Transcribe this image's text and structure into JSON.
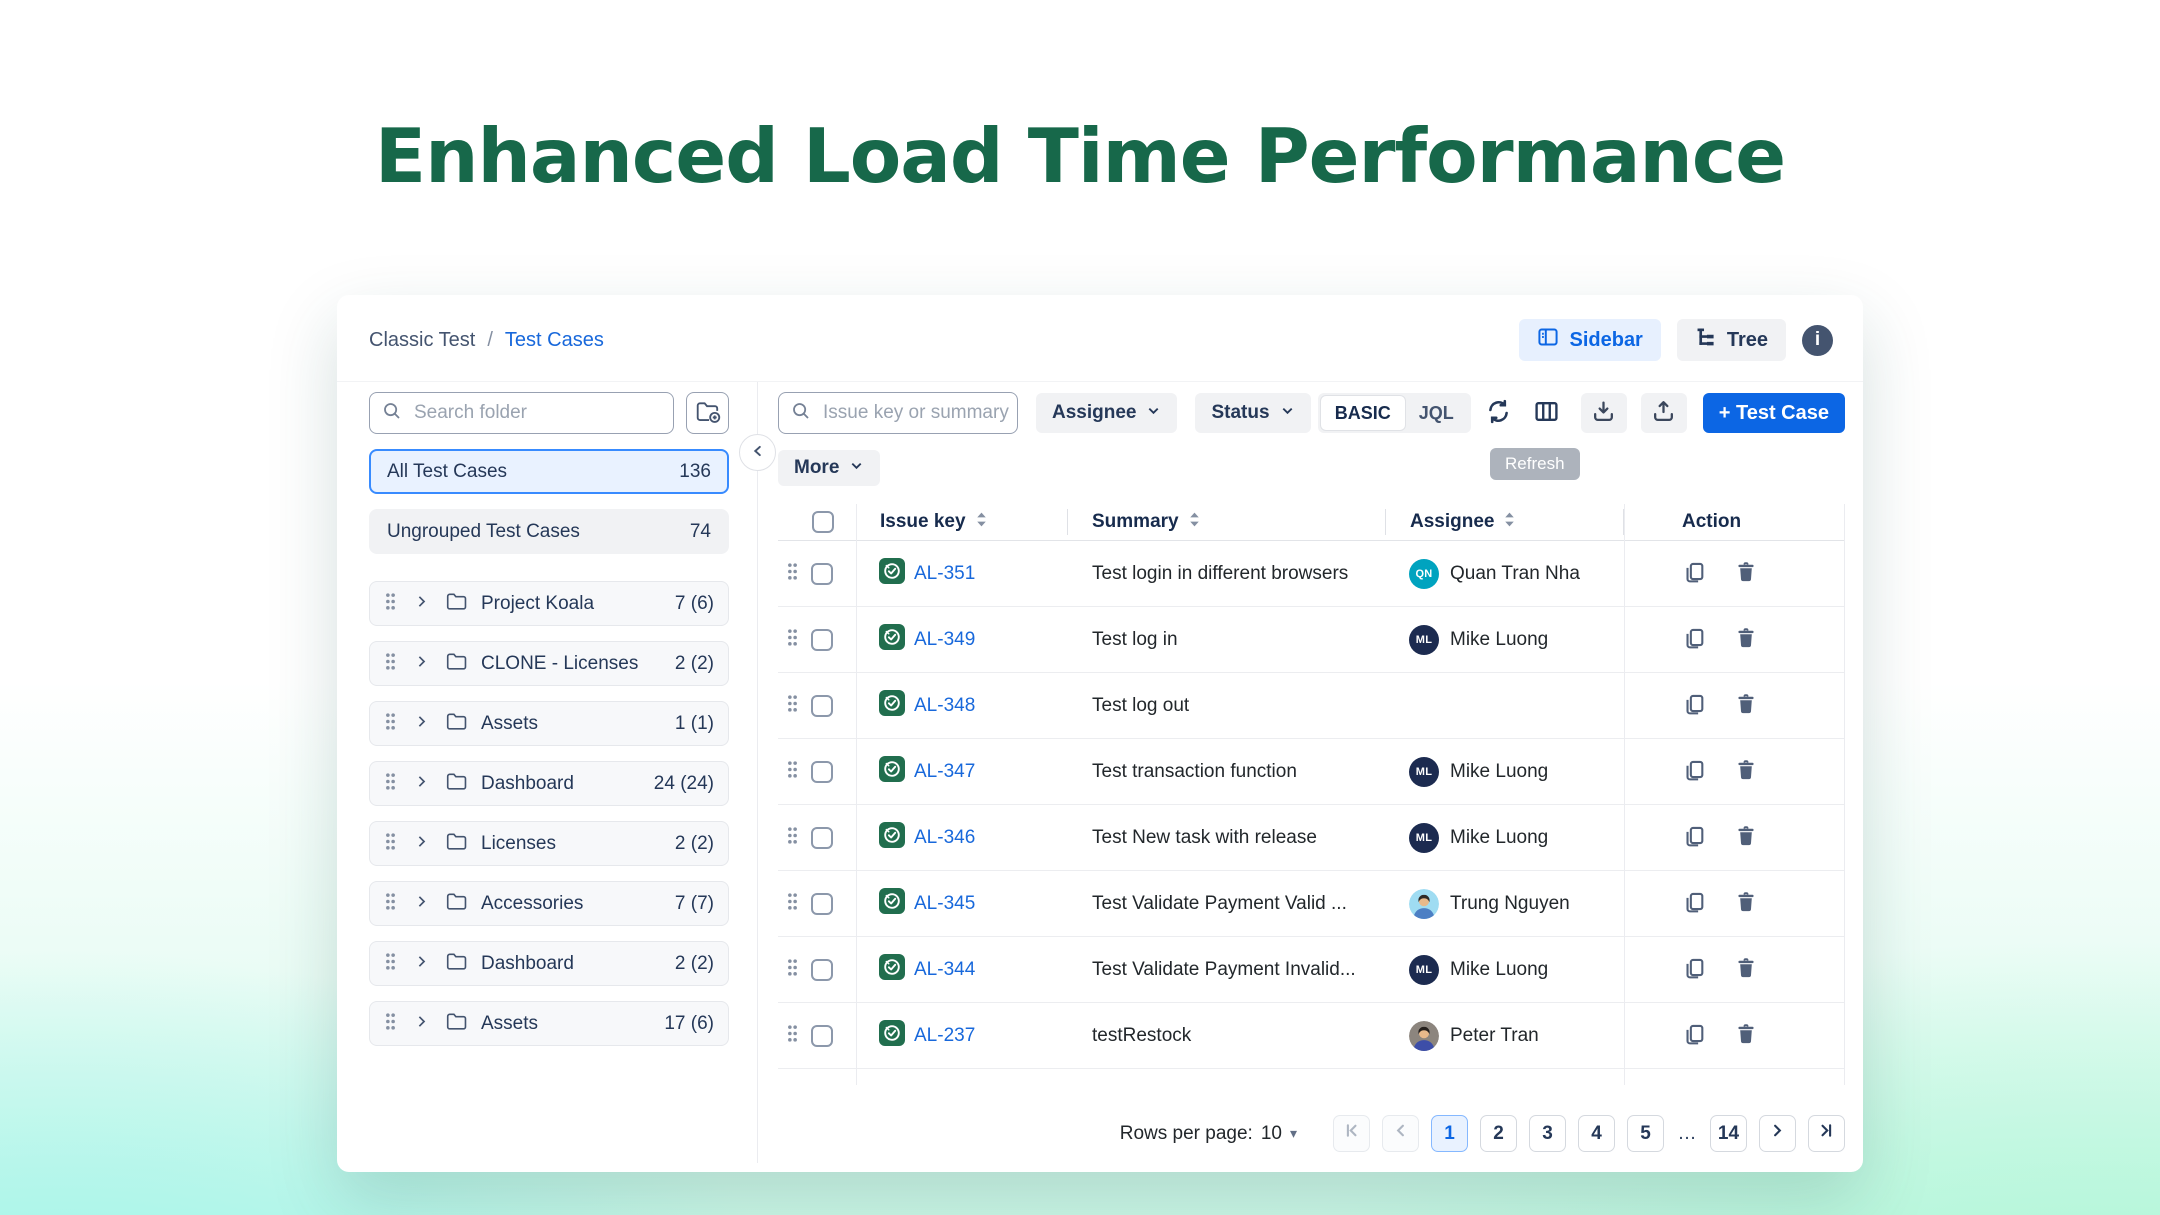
{
  "page": {
    "title": "Enhanced Load Time Performance"
  },
  "colors": {
    "title_green": "#17684A",
    "accent_blue": "#0C66E4",
    "link_blue": "#1868DB",
    "selected_bg": "#E9F2FF",
    "selected_border": "#388BFF",
    "test_case_green": "#216E4E",
    "text_primary": "#172B4D",
    "bg_corner_left": "#9EF4EC",
    "bg_corner_right": "#AEF6D6"
  },
  "icons": {
    "search": "magnifier",
    "add-folder": "folder-plus",
    "drag-handle": "six-dots",
    "chevron-right": "›",
    "folder": "folder-outline",
    "collapse": "‹",
    "sidebar": "split-panel",
    "tree": "hierarchy",
    "info": "i-circle",
    "refresh": "circular-arrows",
    "columns": "table-columns",
    "download": "arrow-down-tray",
    "upload": "arrow-up-tray",
    "test-case": "check-circle-tile",
    "copy": "duplicate",
    "trash": "trash-can",
    "sort": "up-down-triangles"
  },
  "window": {
    "breadcrumb": {
      "parent": "Classic Test",
      "separator": "/",
      "current": "Test Cases"
    },
    "view_buttons": {
      "sidebar": "Sidebar",
      "tree": "Tree"
    },
    "sidebar": {
      "search_placeholder": "Search folder",
      "summary_items": [
        {
          "label": "All Test Cases",
          "count": "136"
        },
        {
          "label": "Ungrouped Test Cases",
          "count": "74"
        }
      ],
      "folders": [
        {
          "name": "Project Koala",
          "count": "7 (6)"
        },
        {
          "name": "CLONE - Licenses",
          "count": "2 (2)"
        },
        {
          "name": "Assets",
          "count": "1 (1)"
        },
        {
          "name": "Dashboard",
          "count": "24 (24)"
        },
        {
          "name": "Licenses",
          "count": "2 (2)"
        },
        {
          "name": "Accessories",
          "count": "7 (7)"
        },
        {
          "name": "Dashboard",
          "count": "2 (2)"
        },
        {
          "name": "Assets",
          "count": "17 (6)"
        }
      ]
    },
    "toolbar": {
      "search_placeholder": "Issue key or summary",
      "assignee_filter": "Assignee",
      "status_filter": "Status",
      "mode_basic": "BASIC",
      "mode_jql": "JQL",
      "refresh_tooltip": "Refresh",
      "add_test_case": "+ Test Case",
      "more": "More"
    },
    "table": {
      "columns": {
        "issue_key": "Issue key",
        "summary": "Summary",
        "assignee": "Assignee",
        "action": "Action"
      },
      "rows": [
        {
          "key": "AL-351",
          "summary": "Test login in different browsers",
          "assignee": "Quan Tran Nha",
          "avatar": {
            "type": "initials",
            "initials": "QN",
            "color": "#00A3BF"
          }
        },
        {
          "key": "AL-349",
          "summary": "Test log in",
          "assignee": "Mike Luong",
          "avatar": {
            "type": "initials",
            "initials": "ML",
            "color": "#1C2B50"
          }
        },
        {
          "key": "AL-348",
          "summary": "Test log out",
          "assignee": "",
          "avatar": {
            "type": "none"
          }
        },
        {
          "key": "AL-347",
          "summary": "Test transaction function",
          "assignee": "Mike Luong",
          "avatar": {
            "type": "initials",
            "initials": "ML",
            "color": "#1C2B50"
          }
        },
        {
          "key": "AL-346",
          "summary": "Test New task with release",
          "assignee": "Mike Luong",
          "avatar": {
            "type": "initials",
            "initials": "ML",
            "color": "#1C2B50"
          }
        },
        {
          "key": "AL-345",
          "summary": "Test Validate Payment Valid ...",
          "assignee": "Trung Nguyen",
          "avatar": {
            "type": "photo",
            "bg": "#9FDCF2",
            "shirt": "#4C7FC4",
            "hair": "#2E2A26"
          }
        },
        {
          "key": "AL-344",
          "summary": "Test Validate Payment Invalid...",
          "assignee": "Mike Luong",
          "avatar": {
            "type": "initials",
            "initials": "ML",
            "color": "#1C2B50"
          }
        },
        {
          "key": "AL-237",
          "summary": "testRestock",
          "assignee": "Peter Tran",
          "avatar": {
            "type": "photo",
            "bg": "#8C857E",
            "shirt": "#3D4EA8",
            "hair": "#241F1C"
          }
        }
      ]
    },
    "pagination": {
      "rows_per_page_label": "Rows per page:",
      "rows_per_page_value": "10",
      "pages": [
        "1",
        "2",
        "3",
        "4",
        "5",
        "…",
        "14"
      ],
      "active_page": "1"
    }
  }
}
